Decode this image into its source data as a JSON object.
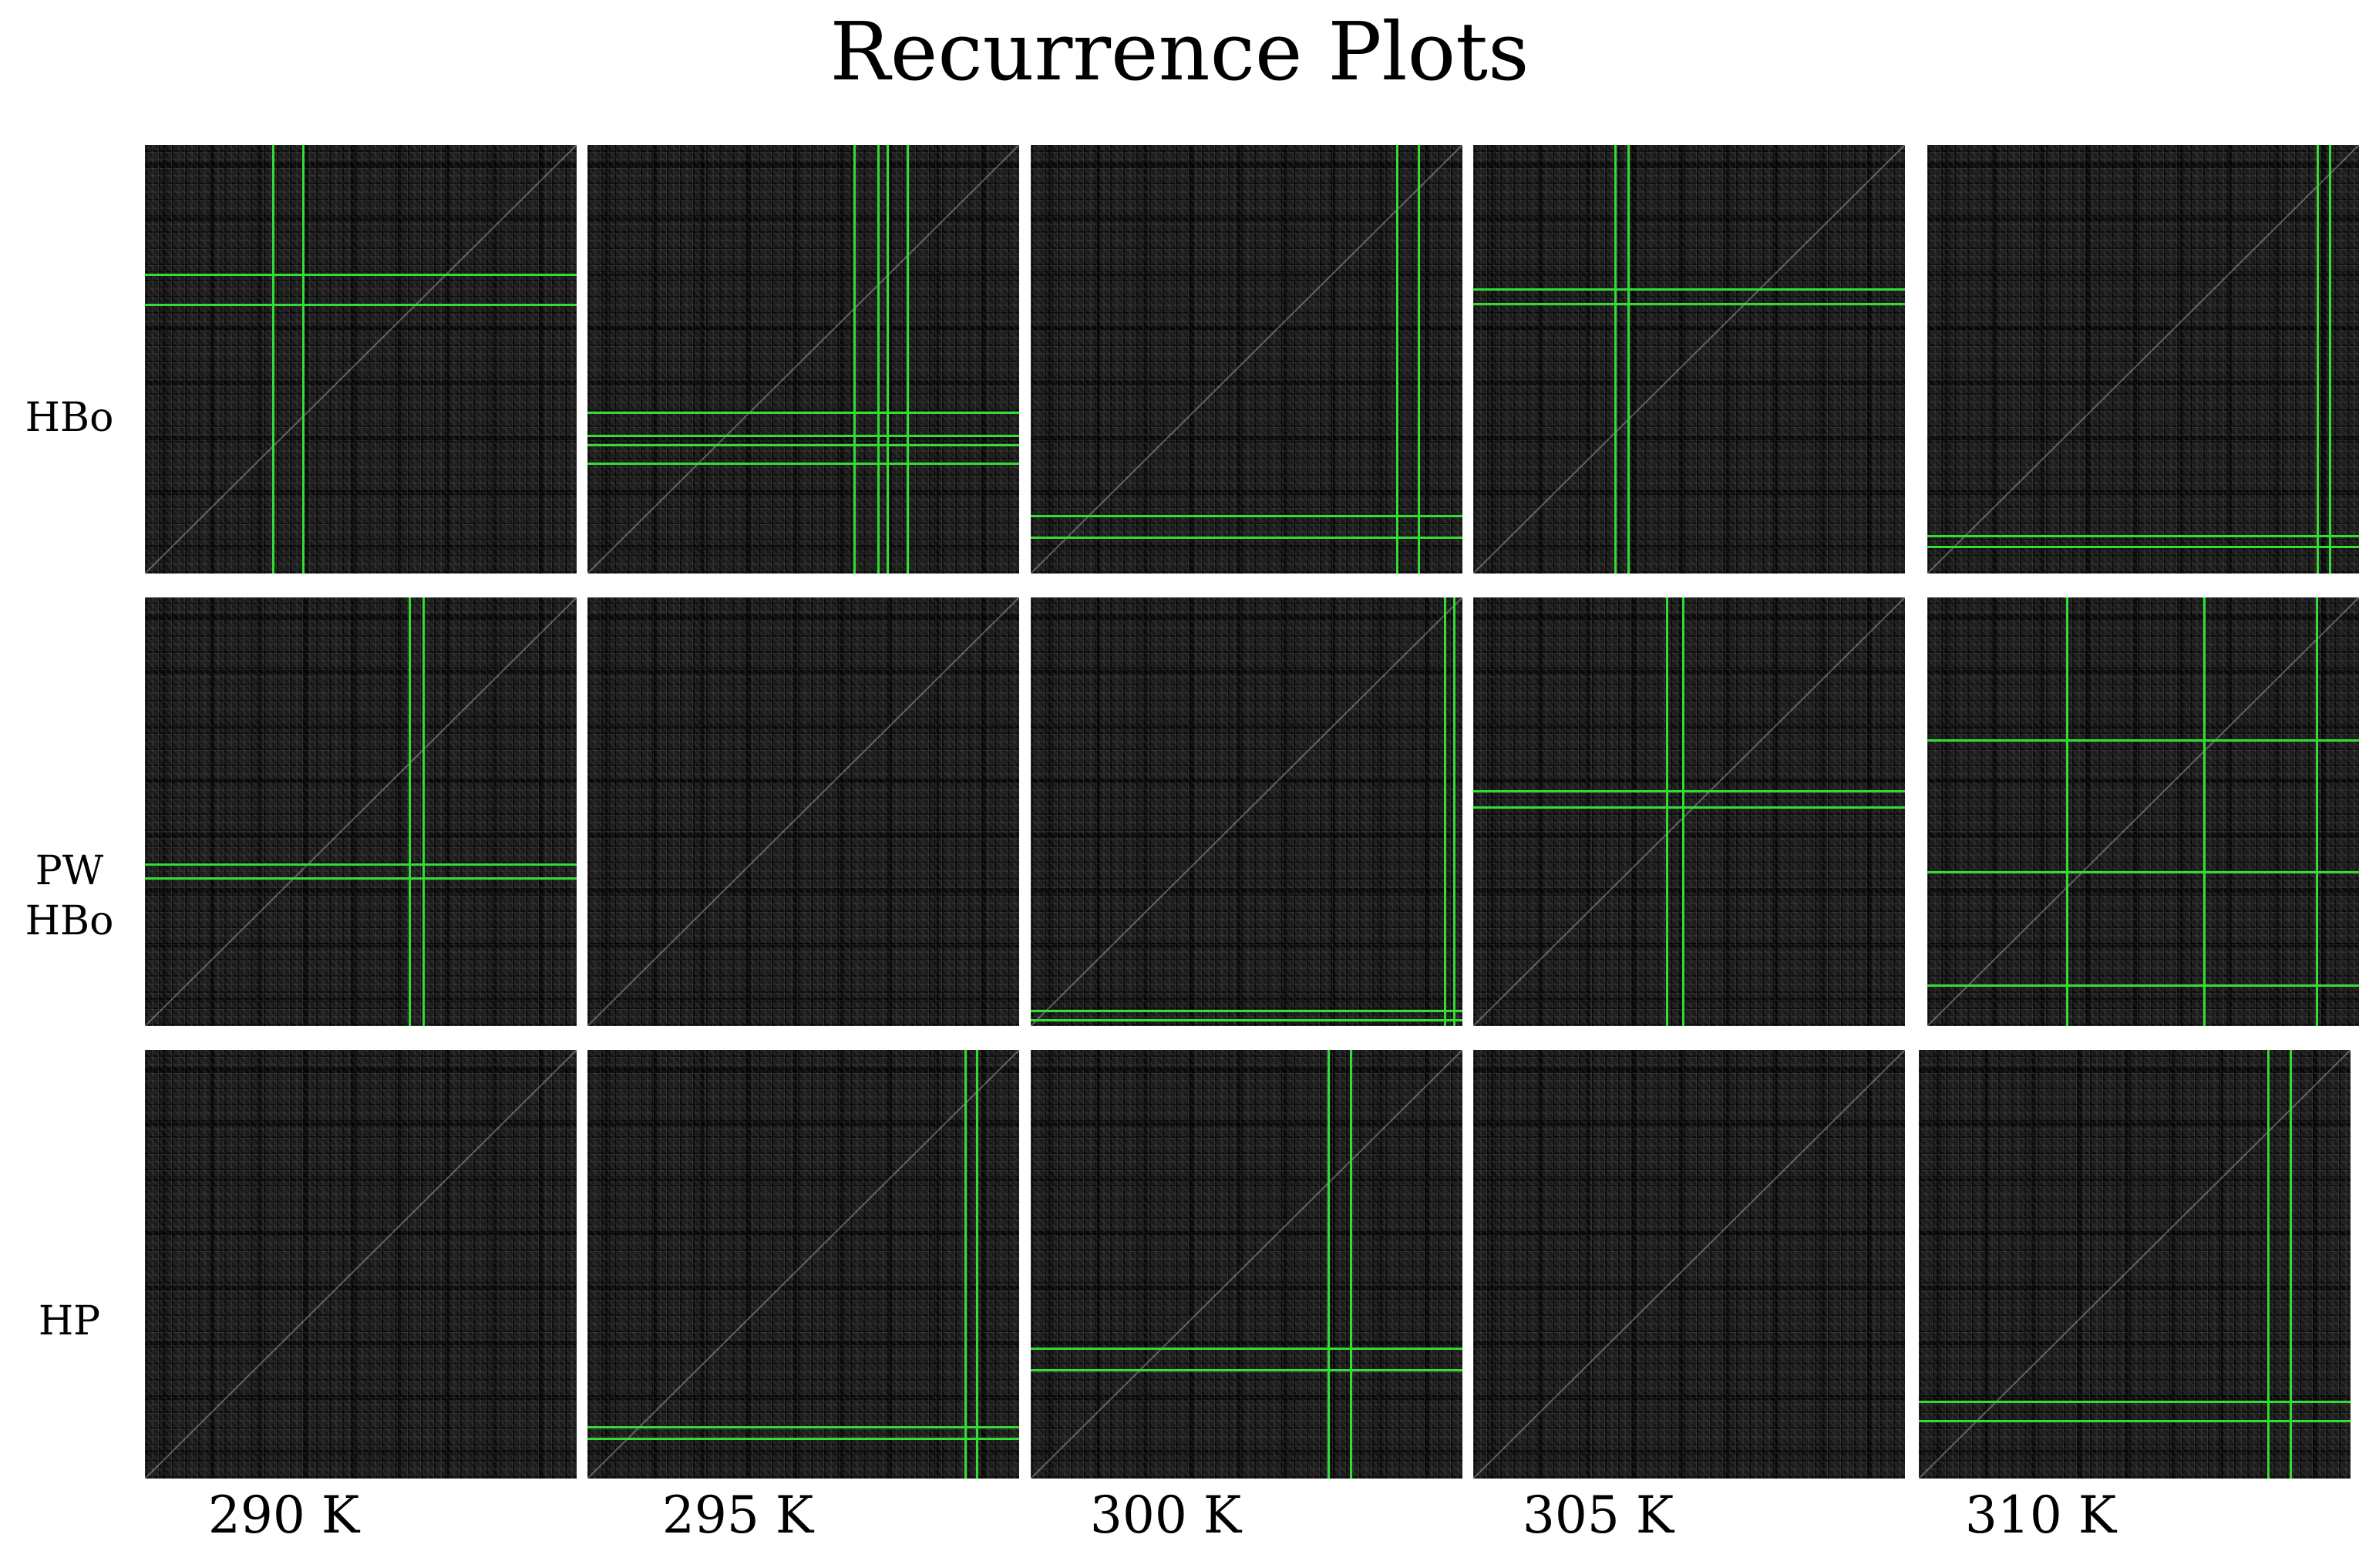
{
  "title": "Recurrence Plots",
  "row_labels": [
    {
      "line1": "HBo",
      "line2": ""
    },
    {
      "line1": "PW",
      "line2": "HBo"
    },
    {
      "line1": "HP",
      "line2": ""
    }
  ],
  "column_labels": [
    "290 K",
    "295 K",
    "300 K",
    "305 K",
    "310 K"
  ],
  "colors": {
    "plot_background": "#1b1b1b",
    "marker_line": "#33dd33",
    "page_background": "#ffffff"
  }
}
